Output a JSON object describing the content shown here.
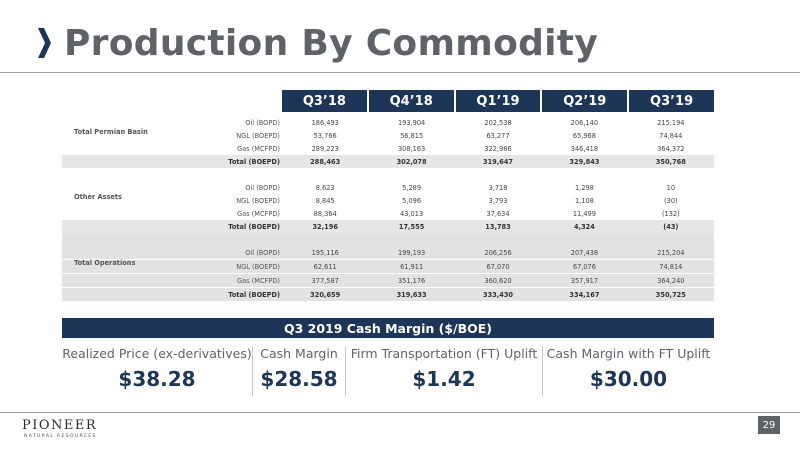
{
  "title": "Production By Commodity",
  "table": {
    "columns": [
      "Q3’18",
      "Q4’18",
      "Q1’19",
      "Q2’19",
      "Q3’19"
    ],
    "groups": [
      {
        "name": "Total Permian Basin",
        "rows": [
          {
            "metric": "Oil (BOPD)",
            "values": [
              "186,493",
              "193,904",
              "202,538",
              "206,140",
              "215,194"
            ]
          },
          {
            "metric": "NGL (BOEPD)",
            "values": [
              "53,766",
              "56,815",
              "63,277",
              "65,968",
              "74,844"
            ]
          },
          {
            "metric": "Gas (MCFPD)",
            "values": [
              "289,223",
              "308,163",
              "322,986",
              "346,418",
              "364,372"
            ]
          }
        ],
        "total": {
          "metric": "Total (BOEPD)",
          "values": [
            "288,463",
            "302,078",
            "319,647",
            "329,843",
            "350,768"
          ]
        }
      },
      {
        "name": "Other Assets",
        "rows": [
          {
            "metric": "Oil (BOPD)",
            "values": [
              "8,623",
              "5,289",
              "3,718",
              "1,298",
              "10"
            ]
          },
          {
            "metric": "NGL (BOEPD)",
            "values": [
              "8,845",
              "5,096",
              "3,793",
              "1,108",
              "(30)"
            ]
          },
          {
            "metric": "Gas (MCFPD)",
            "values": [
              "88,364",
              "43,013",
              "37,634",
              "11,499",
              "(132)"
            ]
          }
        ],
        "total": {
          "metric": "Total (BOEPD)",
          "values": [
            "32,196",
            "17,555",
            "13,783",
            "4,324",
            "(43)"
          ]
        }
      },
      {
        "name": "Total Operations",
        "rows": [
          {
            "metric": "Oil (BOPD)",
            "values": [
              "195,116",
              "199,193",
              "206,256",
              "207,438",
              "215,204"
            ]
          },
          {
            "metric": "NGL (BOEPD)",
            "values": [
              "62,611",
              "61,911",
              "67,070",
              "67,076",
              "74,814"
            ]
          },
          {
            "metric": "Gas (MCFPD)",
            "values": [
              "377,587",
              "351,176",
              "360,620",
              "357,917",
              "364,240"
            ]
          }
        ],
        "total": {
          "metric": "Total (BOEPD)",
          "values": [
            "320,659",
            "319,633",
            "333,430",
            "334,167",
            "350,725"
          ]
        }
      }
    ]
  },
  "cash_margin": {
    "banner": "Q3 2019 Cash Margin ($/BOE)",
    "items": [
      {
        "label": "Realized Price (ex-derivatives)",
        "value": "$38.28"
      },
      {
        "label": "Cash Margin",
        "value": "$28.58"
      },
      {
        "label": "Firm Transportation (FT) Uplift",
        "value": "$1.42"
      },
      {
        "label": "Cash Margin with FT Uplift",
        "value": "$30.00"
      }
    ]
  },
  "logo": {
    "name": "PIONEER",
    "sub": "NATURAL RESOURCES"
  },
  "page_number": "29",
  "colors": {
    "navy": "#1d3557",
    "title_gray": "#5f6368",
    "chevron": "#1d3557"
  }
}
